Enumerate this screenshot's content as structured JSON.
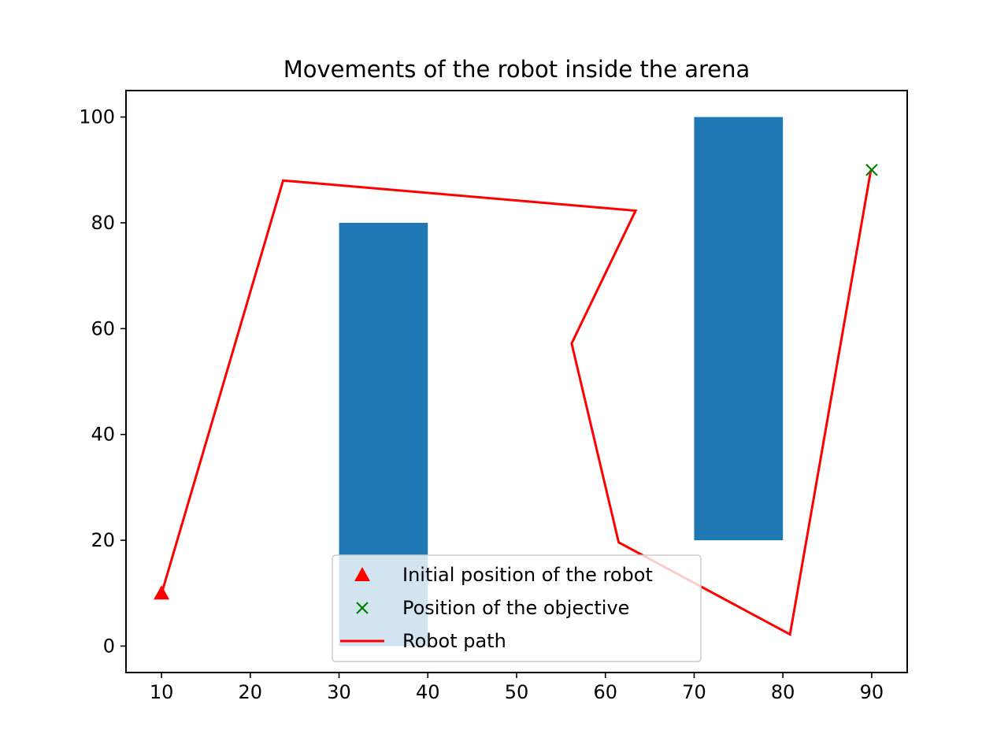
{
  "chart_data": {
    "type": "line",
    "title": "Movements of the robot inside the arena",
    "xlabel": "",
    "ylabel": "",
    "xlim": [
      6,
      94
    ],
    "ylim": [
      -5,
      105
    ],
    "x_ticks": [
      10,
      20,
      30,
      40,
      50,
      60,
      70,
      80,
      90
    ],
    "y_ticks": [
      0,
      20,
      40,
      60,
      80,
      100
    ],
    "grid": false,
    "legend_position": "lower center",
    "obstacles": [
      {
        "x": [
          30,
          40
        ],
        "y": [
          0,
          80
        ],
        "color": "#1f77b4"
      },
      {
        "x": [
          70,
          80
        ],
        "y": [
          20,
          100
        ],
        "color": "#1f77b4"
      }
    ],
    "series": [
      {
        "name": "Initial position of the robot",
        "kind": "marker",
        "marker": "triangle",
        "color": "#ff0000",
        "points": [
          [
            10,
            10
          ]
        ]
      },
      {
        "name": "Position of the objective",
        "kind": "marker",
        "marker": "x",
        "color": "#008000",
        "points": [
          [
            90,
            90
          ]
        ]
      },
      {
        "name": "Robot path",
        "kind": "line",
        "color": "#ff0000",
        "points": [
          [
            10,
            10
          ],
          [
            10.2,
            11
          ],
          [
            23.7,
            88
          ],
          [
            63.4,
            82.3
          ],
          [
            56.2,
            57.2
          ],
          [
            61.5,
            19.6
          ],
          [
            80.8,
            2.2
          ],
          [
            89.9,
            89.9
          ]
        ]
      }
    ]
  }
}
